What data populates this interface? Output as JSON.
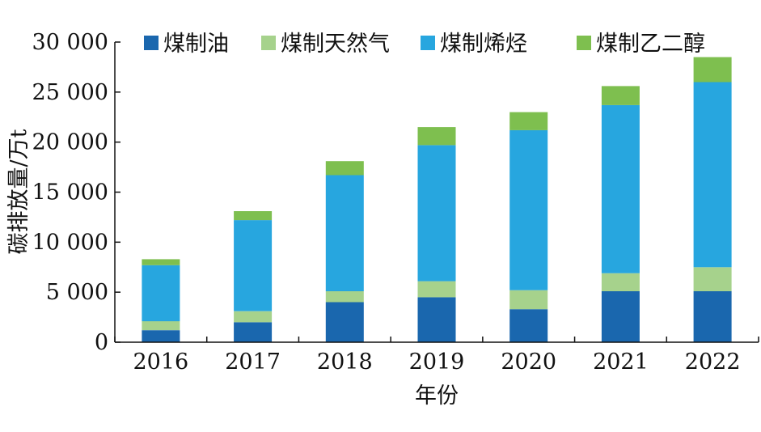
{
  "chart_data": {
    "type": "bar",
    "stacked": true,
    "categories": [
      "2016",
      "2017",
      "2018",
      "2019",
      "2020",
      "2021",
      "2022"
    ],
    "series": [
      {
        "name": "煤制油",
        "color": "#1a67ae",
        "values": [
          1200,
          2000,
          4000,
          4500,
          3300,
          5100,
          5100
        ]
      },
      {
        "name": "煤制天然气",
        "color": "#a6d28c",
        "values": [
          900,
          1100,
          1100,
          1600,
          1900,
          1800,
          2400
        ]
      },
      {
        "name": "煤制烯烃",
        "color": "#27a6df",
        "values": [
          5600,
          9100,
          11600,
          13600,
          16000,
          16800,
          18500
        ]
      },
      {
        "name": "煤制乙二醇",
        "color": "#7ebf4f",
        "values": [
          600,
          900,
          1400,
          1800,
          1800,
          1900,
          2500
        ]
      }
    ],
    "xlabel": "年份",
    "ylabel": "碳排放量/万t",
    "ylim": [
      0,
      30000
    ],
    "yticks": [
      0,
      5000,
      10000,
      15000,
      20000,
      25000,
      30000
    ],
    "ytick_labels": [
      "0",
      "5 000",
      "10 000",
      "15 000",
      "20 000",
      "25 000",
      "30 000"
    ],
    "grid": false,
    "legend_position": "top"
  }
}
